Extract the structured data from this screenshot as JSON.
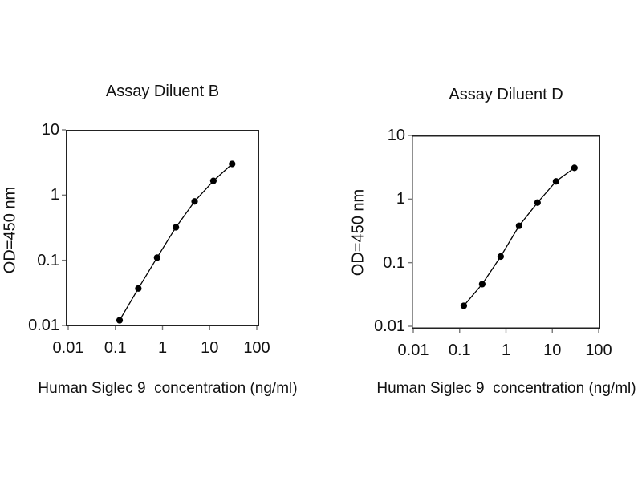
{
  "figure": {
    "background": "#ffffff",
    "ink_color": "#000000",
    "axis_color": "#222222",
    "tick_color": "#777777"
  },
  "chart_data": [
    {
      "type": "line",
      "title": "Assay Diluent B",
      "xlabel": "Human Siglec 9  concentration (ng/ml)",
      "ylabel": "OD=450 nm",
      "x_scale": "log",
      "y_scale": "log",
      "xlim": [
        0.01,
        100
      ],
      "ylim": [
        0.01,
        10
      ],
      "x_tick_labels": [
        "0.01",
        "0.1",
        "1",
        "10",
        "100"
      ],
      "y_tick_labels": [
        "0.01",
        "0.1",
        "1",
        "10"
      ],
      "grid": false,
      "legend": false,
      "marker": "filled-circle",
      "line_color": "#000000",
      "x": [
        0.123,
        0.307,
        0.768,
        1.92,
        4.8,
        12,
        30
      ],
      "y": [
        0.012,
        0.037,
        0.11,
        0.32,
        0.8,
        1.65,
        3.0
      ]
    },
    {
      "type": "line",
      "title": "Assay Diluent D",
      "xlabel": "Human Siglec 9  concentration (ng/ml)",
      "ylabel": "OD=450 nm",
      "x_scale": "log",
      "y_scale": "log",
      "xlim": [
        0.01,
        100
      ],
      "ylim": [
        0.01,
        10
      ],
      "x_tick_labels": [
        "0.01",
        "0.1",
        "1",
        "10",
        "100"
      ],
      "y_tick_labels": [
        "0.01",
        "0.1",
        "1",
        "10"
      ],
      "grid": false,
      "legend": false,
      "marker": "filled-circle",
      "line_color": "#000000",
      "x": [
        0.123,
        0.307,
        0.768,
        1.92,
        4.8,
        12,
        30
      ],
      "y": [
        0.021,
        0.046,
        0.125,
        0.38,
        0.88,
        1.9,
        3.1
      ]
    }
  ]
}
